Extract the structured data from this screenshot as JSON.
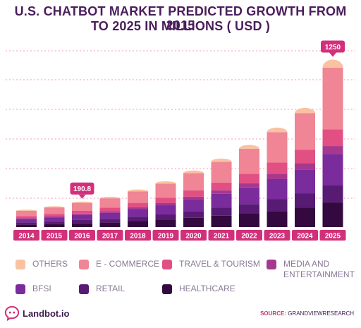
{
  "header": {
    "title_line1": "U.S. CHATBOT MARKET PREDICTED GROWTH FROM 2015",
    "title_line2": "TO 2025 IN MILLIONS ( USD )"
  },
  "chart_data": {
    "type": "bar",
    "stacked": true,
    "categories": [
      "2014",
      "2015",
      "2016",
      "2017",
      "2018",
      "2019",
      "2020",
      "2021",
      "2022",
      "2023",
      "2024",
      "2025"
    ],
    "ylim": [
      0,
      1400
    ],
    "grid": true,
    "legend_position": "bottom",
    "callouts": [
      {
        "category": "2016",
        "label": "190.8"
      },
      {
        "category": "2025",
        "label": "1250"
      }
    ],
    "series": [
      {
        "name": "HEALTHCARE",
        "color": "#33093f",
        "values": [
          20,
          25,
          30,
          35,
          45,
          55,
          70,
          85,
          100,
          120,
          145,
          185
        ]
      },
      {
        "name": "RETAIL",
        "color": "#571b74",
        "values": [
          15,
          18,
          23,
          27,
          33,
          40,
          50,
          60,
          72,
          88,
          105,
          130
        ]
      },
      {
        "name": "BFSI",
        "color": "#7a2b9c",
        "values": [
          25,
          30,
          38,
          45,
          56,
          68,
          85,
          103,
          124,
          150,
          180,
          230
        ]
      },
      {
        "name": "MEDIA AND ENTERTAINMENT",
        "color": "#a6388f",
        "values": [
          7,
          8,
          10,
          12,
          15,
          18,
          22,
          27,
          32,
          39,
          46,
          60
        ]
      },
      {
        "name": "TRAVEL & TOURISM",
        "color": "#e24f82",
        "values": [
          15,
          18,
          22,
          26,
          32,
          39,
          48,
          58,
          70,
          85,
          102,
          125
        ]
      },
      {
        "name": "E - COMMERCE",
        "color": "#ef8595",
        "values": [
          40,
          48,
          58,
          70,
          86,
          105,
          128,
          155,
          187,
          227,
          272,
          460
        ]
      },
      {
        "name": "OTHERS",
        "color": "#f9c2a1",
        "values": [
          8,
          9,
          10,
          12,
          14,
          17,
          20,
          24,
          28,
          34,
          40,
          60
        ]
      }
    ]
  },
  "legend": {
    "items": [
      {
        "label": "OTHERS",
        "color": "#f9c2a1"
      },
      {
        "label": "E - COMMERCE",
        "color": "#ef8595"
      },
      {
        "label": "TRAVEL & TOURISM",
        "color": "#e24f82"
      },
      {
        "label": "MEDIA AND\nENTERTAINMENT",
        "color": "#a6388f"
      },
      {
        "label": "BFSI",
        "color": "#7a2b9c"
      },
      {
        "label": "RETAIL",
        "color": "#571b74"
      },
      {
        "label": "HEALTHCARE",
        "color": "#33093f"
      }
    ]
  },
  "footer": {
    "brand": "Landbot.io",
    "source_label": "SOURCE:",
    "source_value": " GRANDVIEWRESEARCH"
  },
  "colors": {
    "accent": "#d2307a",
    "title": "#4a1d5b",
    "grid": "#ef6b9c"
  }
}
